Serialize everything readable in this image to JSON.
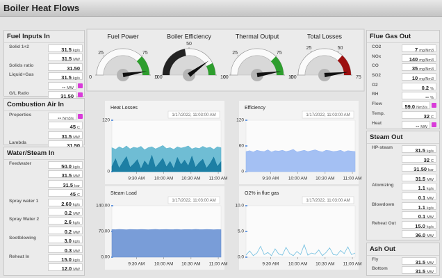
{
  "header": {
    "title": "Boiler Heat Flows"
  },
  "panels": [
    {
      "title": "Fuel Inputs In",
      "rows": [
        {
          "label": "Solid 1+2",
          "value": "31.5",
          "unit": "kg/s"
        },
        {
          "value": "31.5",
          "unit": "MW"
        },
        {
          "label": "Solids ratio",
          "value": "31.50"
        },
        {
          "label": "Liquid+Gas",
          "value": "31.5",
          "unit": "kg/s"
        },
        {
          "value": "--",
          "unit": "MW",
          "icon": true
        },
        {
          "label": "G/L Ratio",
          "value": "31.50",
          "icon": true
        }
      ]
    },
    {
      "title": "Combustion Air In",
      "rows": [
        {
          "label": "Properties",
          "value": "--",
          "unit": "Nm3/s",
          "icon": true
        },
        {
          "value": "45",
          "unit": "C"
        },
        {
          "value": "31.5",
          "unit": "MW"
        },
        {
          "label": "Lambda",
          "value": "31.50"
        }
      ]
    },
    {
      "title": "Water/Steam In",
      "rows": [
        {
          "label": "Feedwater",
          "value": "50.0",
          "unit": "kg/s"
        },
        {
          "value": "31.5",
          "unit": "MW"
        },
        {
          "value": "31.5",
          "unit": "bar"
        },
        {
          "value": "45",
          "unit": "C"
        },
        {
          "label": "Spray water 1",
          "value": "2.60",
          "unit": "kg/s"
        },
        {
          "value": "0.2",
          "unit": "MW"
        },
        {
          "label": "Spray Water 2",
          "value": "2.6",
          "unit": "kg/s"
        },
        {
          "value": "0.2",
          "unit": "MW"
        },
        {
          "label": "Sootblowing",
          "value": "3.0",
          "unit": "kg/s"
        },
        {
          "value": "0.3",
          "unit": "MW"
        },
        {
          "label": "Reheat In",
          "value": "15.0",
          "unit": "kg/s"
        },
        {
          "value": "12.0",
          "unit": "MW"
        }
      ]
    },
    {
      "title": "Flue Gas Out",
      "rows": [
        {
          "label": "CO2",
          "value": "7",
          "unit": "mg/Nm3"
        },
        {
          "label": "NOx",
          "value": "140",
          "unit": "mg/Nm3"
        },
        {
          "label": "CO",
          "value": "35",
          "unit": "mg/Nm3"
        },
        {
          "label": "SO2",
          "value": "10",
          "unit": "mg/Nm3"
        },
        {
          "label": "O2",
          "value": "0.2",
          "unit": "%"
        },
        {
          "label": "RH",
          "value": "--",
          "unit": "%"
        },
        {
          "label": "Flow",
          "value": "59.0",
          "unit": "Nm3/s",
          "icon": true
        },
        {
          "label": "Temp.",
          "value": "32",
          "unit": "C"
        },
        {
          "label": "Heat",
          "value": "--",
          "unit": "MW",
          "icon": true
        }
      ]
    },
    {
      "title": "Steam Out",
      "rows": [
        {
          "label": "HP-steam",
          "value": "31.5",
          "unit": "kg/s"
        },
        {
          "value": "32",
          "unit": "C"
        },
        {
          "value": "31.50",
          "unit": "bar"
        },
        {
          "value": "31.5",
          "unit": "MW"
        },
        {
          "label": "Atomizing",
          "value": "1.1",
          "unit": "kg/s"
        },
        {
          "value": "0.1",
          "unit": "MW"
        },
        {
          "label": "Blowdown",
          "value": "1.1",
          "unit": "kg/s"
        },
        {
          "value": "0.1",
          "unit": "MW"
        },
        {
          "label": "Reheat Out",
          "value": "15.0",
          "unit": "kg/s"
        },
        {
          "value": "36.0",
          "unit": "MW"
        }
      ]
    },
    {
      "title": "Ash Out",
      "rows": [
        {
          "label": "Fly",
          "value": "31.5",
          "unit": "MW"
        },
        {
          "label": "Bottom",
          "value": "31.5",
          "unit": "MW"
        }
      ]
    }
  ],
  "chart_data": [
    {
      "type": "gauge",
      "title": "Fuel Power",
      "value": 95,
      "ylim": [
        0,
        100
      ],
      "yticks": [
        0,
        25,
        75,
        100
      ],
      "bands": [
        {
          "from": 75,
          "to": 100,
          "color": "#2e9e2e"
        }
      ]
    },
    {
      "type": "gauge",
      "title": "Boiler Efficiency",
      "value": 80,
      "ylim": [
        0,
        100
      ],
      "yticks": [
        0,
        50,
        100
      ],
      "bands": [
        {
          "from": 0,
          "to": 45,
          "color": "#222222"
        },
        {
          "from": 85,
          "to": 100,
          "color": "#2e9e2e"
        }
      ]
    },
    {
      "type": "gauge",
      "title": "Thermal Output",
      "value": 95,
      "ylim": [
        0,
        100
      ],
      "yticks": [
        0,
        25,
        75,
        100
      ],
      "bands": [
        {
          "from": 75,
          "to": 100,
          "color": "#2e9e2e"
        }
      ]
    },
    {
      "type": "gauge",
      "title": "Total Losses",
      "value": 72,
      "ylim": [
        0,
        75
      ],
      "yticks": [
        0,
        25,
        50,
        75
      ],
      "bands": [
        {
          "from": 55,
          "to": 75,
          "color": "#9c1010"
        }
      ]
    },
    {
      "type": "area",
      "title": "Heat Losses",
      "timestamp": "1/17/2022, 11:03:00 AM",
      "x": [
        543,
        547,
        551,
        555,
        559,
        563,
        567,
        571,
        575,
        579,
        583,
        587,
        591,
        595,
        599,
        603,
        607,
        611,
        615,
        619,
        623,
        627,
        631,
        635,
        639,
        643,
        647,
        651,
        655,
        659,
        663
      ],
      "xlim": [
        543,
        663
      ],
      "xticks": [
        {
          "value": 570,
          "label": "9:30 AM"
        },
        {
          "value": 600,
          "label": "10:00 AM"
        },
        {
          "value": 630,
          "label": "10:30 AM"
        },
        {
          "value": 660,
          "label": "11:00 AM"
        }
      ],
      "ylim": [
        0,
        120
      ],
      "yticks": [
        0,
        120
      ],
      "series": [
        {
          "color": "#5fb6cf",
          "values": [
            56,
            52,
            58,
            54,
            60,
            53,
            57,
            55,
            59,
            51,
            56,
            58,
            53,
            57,
            61,
            54,
            56,
            52,
            58,
            55,
            57,
            60,
            53,
            56,
            54,
            59,
            55,
            57,
            52,
            58,
            56
          ]
        },
        {
          "color": "#14789f",
          "values": [
            12,
            30,
            8,
            22,
            35,
            10,
            18,
            28,
            6,
            25,
            14,
            38,
            9,
            20,
            31,
            11,
            24,
            7,
            33,
            16,
            27,
            13,
            36,
            10,
            21,
            29,
            8,
            19,
            34,
            12,
            23
          ]
        }
      ]
    },
    {
      "type": "area",
      "title": "Efficiency",
      "timestamp": "1/17/2022, 11:03:00 AM",
      "x": [
        543,
        547,
        551,
        555,
        559,
        563,
        567,
        571,
        575,
        579,
        583,
        587,
        591,
        595,
        599,
        603,
        607,
        611,
        615,
        619,
        623,
        627,
        631,
        635,
        639,
        643,
        647,
        651,
        655,
        659,
        663
      ],
      "xlim": [
        543,
        663
      ],
      "xticks": [
        {
          "value": 570,
          "label": "9:30 AM"
        },
        {
          "value": 600,
          "label": "10:00 AM"
        },
        {
          "value": 630,
          "label": "10:30 AM"
        },
        {
          "value": 660,
          "label": "11:00 AM"
        }
      ],
      "ylim": [
        0,
        120
      ],
      "yticks": [
        0,
        60,
        120
      ],
      "series": [
        {
          "color": "#9ab9f2",
          "values": [
            47,
            49,
            46,
            50,
            48,
            47,
            51,
            46,
            49,
            48,
            50,
            47,
            49,
            52,
            46,
            48,
            50,
            47,
            49,
            51,
            48,
            46,
            50,
            49,
            47,
            48,
            50,
            46,
            49,
            48,
            47
          ]
        }
      ]
    },
    {
      "type": "area",
      "title": "Steam Load",
      "timestamp": "1/17/2022, 11:03:00 AM",
      "x": [
        543,
        547,
        551,
        555,
        559,
        563,
        567,
        571,
        575,
        579,
        583,
        587,
        591,
        595,
        599,
        603,
        607,
        611,
        615,
        619,
        623,
        627,
        631,
        635,
        639,
        643,
        647,
        651,
        655,
        659,
        663
      ],
      "xlim": [
        543,
        663
      ],
      "xticks": [
        {
          "value": 570,
          "label": "9:30 AM"
        },
        {
          "value": 600,
          "label": "10:00 AM"
        },
        {
          "value": 630,
          "label": "10:30 AM"
        },
        {
          "value": 660,
          "label": "11:00 AM"
        }
      ],
      "ylim": [
        0,
        140
      ],
      "yticks": [
        {
          "value": 0,
          "label": "0.00"
        },
        {
          "value": 70,
          "label": "70.00"
        },
        {
          "value": 140,
          "label": "140.00"
        }
      ],
      "series": [
        {
          "color": "#6a92d4",
          "values": [
            75.2,
            74.8,
            75.5,
            75.0,
            74.6,
            75.3,
            75.1,
            74.9,
            75.4,
            75.0,
            74.7,
            75.2,
            75.6,
            74.8,
            75.1,
            75.3,
            74.9,
            75.0,
            75.4,
            74.6,
            75.2,
            75.1,
            74.8,
            75.5,
            75.0,
            74.9,
            75.3,
            75.1,
            74.7,
            75.2,
            75.0
          ]
        }
      ]
    },
    {
      "type": "line",
      "title": "O2% in flue gas",
      "timestamp": "1/17/2022, 11:03:00 AM",
      "x": [
        543,
        547,
        551,
        555,
        559,
        563,
        567,
        571,
        575,
        579,
        583,
        587,
        591,
        595,
        599,
        603,
        607,
        611,
        615,
        619,
        623,
        627,
        631,
        635,
        639,
        643,
        647,
        651,
        655,
        659,
        663
      ],
      "xlim": [
        543,
        663
      ],
      "xticks": [
        {
          "value": 570,
          "label": "9:30 AM"
        },
        {
          "value": 600,
          "label": "10:00 AM"
        },
        {
          "value": 630,
          "label": "10:30 AM"
        },
        {
          "value": 660,
          "label": "11:00 AM"
        }
      ],
      "ylim": [
        0,
        10
      ],
      "yticks": [
        {
          "value": 0,
          "label": "0.0"
        },
        {
          "value": 5,
          "label": "5.0"
        },
        {
          "value": 10,
          "label": "10.0"
        }
      ],
      "series": [
        {
          "color": "#7cc4e2",
          "values": [
            0.4,
            1.2,
            0.3,
            0.8,
            2.1,
            0.5,
            0.9,
            0.3,
            1.6,
            0.6,
            0.4,
            1.9,
            0.7,
            0.3,
            1.1,
            0.5,
            2.4,
            0.4,
            0.8,
            0.6,
            1.4,
            0.3,
            0.9,
            1.8,
            0.5,
            0.4,
            1.3,
            0.7,
            2.0,
            0.5,
            0.8
          ]
        }
      ]
    }
  ]
}
